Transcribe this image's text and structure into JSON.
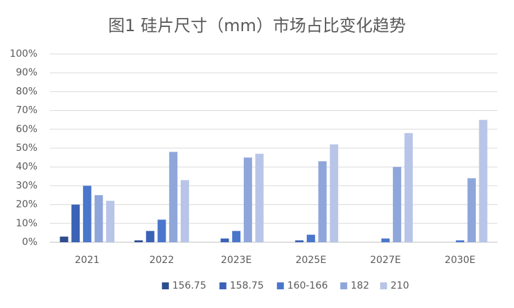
{
  "chart_data": {
    "type": "bar",
    "title": "图1  硅片尺寸（mm）市场占比变化趋势",
    "categories": [
      "2021",
      "2022",
      "2023E",
      "2025E",
      "2027E",
      "2030E"
    ],
    "series": [
      {
        "name": "156.75",
        "color": "#2e4d8f",
        "values": [
          3,
          1,
          0,
          0,
          0,
          0
        ]
      },
      {
        "name": "158.75",
        "color": "#3a62b5",
        "values": [
          20,
          6,
          2,
          1,
          0,
          0
        ]
      },
      {
        "name": "160-166",
        "color": "#4a76cc",
        "values": [
          30,
          12,
          6,
          4,
          2,
          1
        ]
      },
      {
        "name": "182",
        "color": "#8fa6da",
        "values": [
          25,
          48,
          45,
          43,
          40,
          34
        ]
      },
      {
        "name": "210",
        "color": "#b8c5e8",
        "values": [
          22,
          33,
          47,
          52,
          58,
          65
        ]
      }
    ],
    "ylim": [
      0,
      100
    ],
    "yticks": [
      {
        "value": 0,
        "label": "0%"
      },
      {
        "value": 10,
        "label": "10%"
      },
      {
        "value": 20,
        "label": "20%"
      },
      {
        "value": 30,
        "label": "30%"
      },
      {
        "value": 40,
        "label": "40%"
      },
      {
        "value": 50,
        "label": "50%"
      },
      {
        "value": 60,
        "label": "60%"
      },
      {
        "value": 70,
        "label": "70%"
      },
      {
        "value": 80,
        "label": "80%"
      },
      {
        "value": 90,
        "label": "90%"
      },
      {
        "value": 100,
        "label": "100%"
      }
    ],
    "grid": true,
    "legend": "bottom"
  }
}
